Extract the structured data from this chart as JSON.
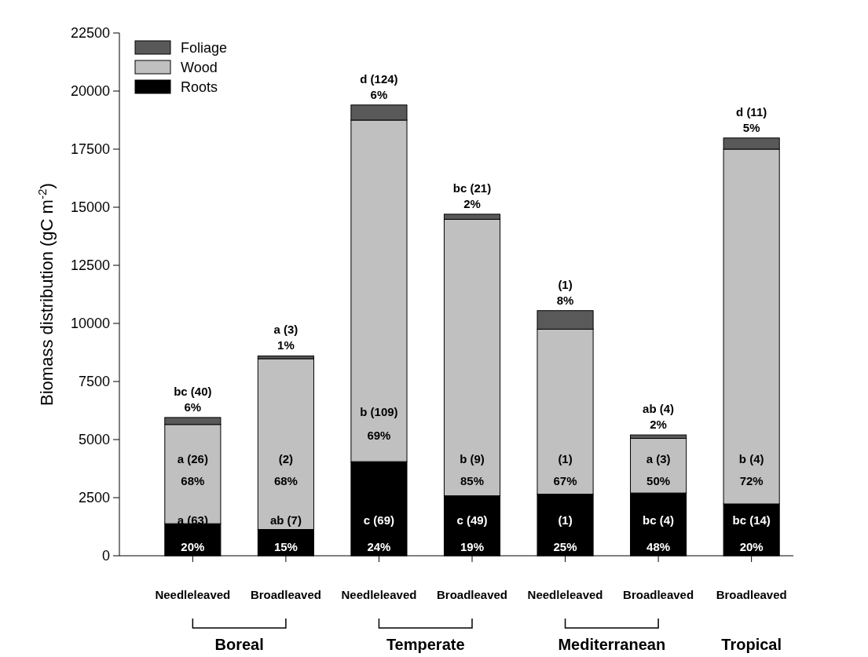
{
  "chart_data": {
    "type": "bar",
    "stacked": true,
    "ylabel": "Biomass distribution (gC m$^{-2}$)",
    "categories": [
      "Needleleaved",
      "Broadleaved",
      "Needleleaved",
      "Broadleaved",
      "Needleleaved",
      "Broadleaved",
      "Broadleaved"
    ],
    "annotations": [
      "Boreal",
      "Temperate",
      "Mediterranean",
      "Tropical",
      "a (63)\n20%",
      "ab (7)\n15%",
      "c (69)\n24%",
      "c (49)\n19%",
      "(1)\n25%",
      "bc (4)\n48%",
      "bc (14)\n20%",
      "a (26)\n68%",
      "(2)\n68%",
      "b (109)\n69%",
      "b (9)\n85%",
      "(1)\n67%",
      "a (3)\n50%",
      "b (4)\n72%",
      "bc (40)\n6%",
      "a (3)\n1%",
      "d (124)\n6%",
      "bc (21)\n2%",
      "(1)\n8%",
      "ab (4)\n2%",
      "d (11)\n5%"
    ],
    "series": [
      {
        "name": "Roots",
        "color": "#000000",
        "values": [
          1380,
          1130,
          4050,
          2580,
          2650,
          2700,
          2230
        ]
      },
      {
        "name": "Wood",
        "color": "#c0c0c0",
        "values": [
          4270,
          7350,
          14700,
          11900,
          7100,
          2350,
          15270
        ]
      },
      {
        "name": "Foliage",
        "color": "#595959",
        "values": [
          300,
          120,
          650,
          220,
          800,
          150,
          480
        ]
      }
    ],
    "ylim": [
      0,
      22500
    ],
    "yticks": [
      0,
      2500,
      5000,
      7500,
      10000,
      12500,
      15000,
      17500,
      20000,
      22500
    ],
    "legend": "top left"
  }
}
